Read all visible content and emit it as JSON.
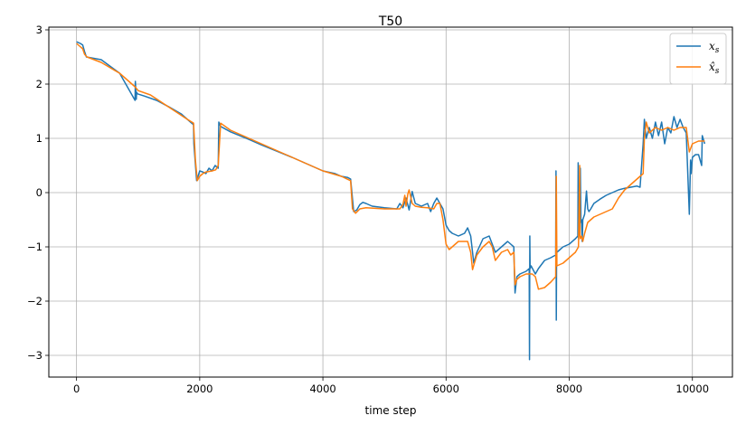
{
  "chart_data": {
    "type": "line",
    "title": "T50",
    "xlabel": "time step",
    "ylabel": "",
    "xlim": [
      -450,
      10650
    ],
    "ylim": [
      -3.4,
      3.05
    ],
    "xticks": [
      0,
      2000,
      4000,
      6000,
      8000,
      10000
    ],
    "xtick_labels": [
      "0",
      "2000",
      "4000",
      "6000",
      "8000",
      "10000"
    ],
    "yticks": [
      -3,
      -2,
      -1,
      0,
      1,
      2,
      3
    ],
    "ytick_labels": [
      "−3",
      "−2",
      "−1",
      "0",
      "1",
      "2",
      "3"
    ],
    "grid": true,
    "legend_position": "top-right",
    "series": [
      {
        "name": "x_s",
        "legend_main": "x",
        "legend_sub": "s",
        "color": "#1f77b4",
        "x": [
          0,
          60,
          100,
          130,
          160,
          400,
          700,
          950,
          955,
          970,
          975,
          990,
          1100,
          1300,
          1500,
          1700,
          1850,
          1900,
          1905,
          1950,
          2000,
          2050,
          2100,
          2150,
          2200,
          2250,
          2300,
          2310,
          2340,
          2500,
          2800,
          3000,
          3500,
          4000,
          4200,
          4300,
          4400,
          4450,
          4500,
          4550,
          4600,
          4650,
          4700,
          4800,
          5000,
          5200,
          5250,
          5300,
          5350,
          5400,
          5450,
          5500,
          5600,
          5700,
          5750,
          5800,
          5850,
          5900,
          5950,
          6000,
          6050,
          6100,
          6200,
          6300,
          6350,
          6400,
          6450,
          6500,
          6600,
          6700,
          6750,
          6800,
          6900,
          7000,
          7050,
          7100,
          7110,
          7120,
          7150,
          7200,
          7300,
          7350,
          7355,
          7360,
          7365,
          7380,
          7450,
          7500,
          7600,
          7700,
          7780,
          7785,
          7790,
          7795,
          7800,
          7850,
          7900,
          8000,
          8100,
          8140,
          8145,
          8150,
          8155,
          8160,
          8180,
          8190,
          8200,
          8210,
          8215,
          8220,
          8250,
          8280,
          8300,
          8320,
          8350,
          8400,
          8500,
          8600,
          8700,
          8800,
          8900,
          9000,
          9100,
          9150,
          9200,
          9220,
          9250,
          9300,
          9350,
          9400,
          9450,
          9500,
          9550,
          9600,
          9650,
          9700,
          9750,
          9800,
          9850,
          9900,
          9950,
          9970,
          9980,
          10000,
          10050,
          10100,
          10150,
          10160,
          10200
        ],
        "y": [
          2.78,
          2.75,
          2.72,
          2.6,
          2.5,
          2.45,
          2.2,
          1.7,
          2.05,
          1.72,
          1.85,
          1.82,
          1.78,
          1.7,
          1.58,
          1.45,
          1.3,
          1.25,
          0.9,
          0.22,
          0.4,
          0.38,
          0.35,
          0.45,
          0.4,
          0.5,
          0.45,
          1.3,
          1.22,
          1.12,
          0.98,
          0.88,
          0.65,
          0.4,
          0.35,
          0.3,
          0.28,
          0.25,
          -0.35,
          -0.32,
          -0.22,
          -0.18,
          -0.2,
          -0.25,
          -0.28,
          -0.3,
          -0.2,
          -0.28,
          -0.1,
          -0.32,
          0.02,
          -0.2,
          -0.25,
          -0.2,
          -0.35,
          -0.2,
          -0.1,
          -0.2,
          -0.3,
          -0.6,
          -0.7,
          -0.75,
          -0.8,
          -0.75,
          -0.65,
          -0.8,
          -1.3,
          -1.1,
          -0.85,
          -0.8,
          -0.95,
          -1.1,
          -1.0,
          -0.9,
          -0.95,
          -1.0,
          -1.5,
          -1.85,
          -1.55,
          -1.5,
          -1.45,
          -1.4,
          -3.08,
          -0.8,
          -1.4,
          -1.35,
          -1.5,
          -1.4,
          -1.25,
          -1.2,
          -1.15,
          0.4,
          -2.35,
          -1.1,
          -1.1,
          -1.05,
          -1.0,
          -0.95,
          -0.85,
          -0.8,
          0.55,
          -0.85,
          -0.7,
          -0.6,
          0.45,
          -0.55,
          -0.5,
          -0.9,
          -0.75,
          -0.5,
          -0.4,
          0.03,
          -0.3,
          -0.35,
          -0.3,
          -0.2,
          -0.12,
          -0.05,
          0.0,
          0.05,
          0.08,
          0.1,
          0.12,
          0.1,
          0.9,
          1.35,
          1.0,
          1.2,
          1.0,
          1.3,
          1.05,
          1.3,
          0.9,
          1.2,
          1.1,
          1.4,
          1.2,
          1.35,
          1.2,
          1.1,
          -0.4,
          0.6,
          0.35,
          0.65,
          0.7,
          0.7,
          0.5,
          1.05,
          0.9
        ]
      },
      {
        "name": "x̂_s",
        "legend_main": "x̂",
        "legend_sub": "s",
        "color": "#ff7f0e",
        "x": [
          0,
          50,
          100,
          130,
          170,
          400,
          700,
          950,
          1000,
          1200,
          1400,
          1600,
          1800,
          1900,
          1930,
          1960,
          2000,
          2050,
          2100,
          2200,
          2260,
          2300,
          2340,
          2500,
          2800,
          3000,
          3500,
          4000,
          4300,
          4450,
          4480,
          4530,
          4600,
          4700,
          5000,
          5250,
          5300,
          5330,
          5350,
          5380,
          5400,
          5420,
          5450,
          5500,
          5600,
          5700,
          5800,
          5850,
          5900,
          5950,
          6000,
          6050,
          6100,
          6200,
          6300,
          6350,
          6400,
          6430,
          6460,
          6500,
          6600,
          6700,
          6750,
          6800,
          6900,
          7000,
          7050,
          7100,
          7120,
          7150,
          7200,
          7300,
          7400,
          7450,
          7500,
          7600,
          7700,
          7780,
          7790,
          7800,
          7900,
          8000,
          8100,
          8150,
          8170,
          8175,
          8180,
          8200,
          8220,
          8250,
          8300,
          8400,
          8500,
          8600,
          8700,
          8800,
          8900,
          9000,
          9100,
          9200,
          9220,
          9250,
          9300,
          9400,
          9500,
          9600,
          9700,
          9800,
          9900,
          9950,
          10000,
          10100,
          10200
        ],
        "y": [
          2.75,
          2.7,
          2.65,
          2.55,
          2.5,
          2.4,
          2.2,
          1.95,
          1.88,
          1.8,
          1.65,
          1.5,
          1.35,
          1.28,
          0.6,
          0.22,
          0.3,
          0.35,
          0.38,
          0.4,
          0.42,
          0.5,
          1.28,
          1.15,
          1.0,
          0.9,
          0.65,
          0.4,
          0.3,
          0.22,
          -0.3,
          -0.38,
          -0.3,
          -0.28,
          -0.3,
          -0.3,
          -0.22,
          -0.05,
          -0.25,
          -0.02,
          0.05,
          -0.05,
          -0.2,
          -0.25,
          -0.27,
          -0.28,
          -0.3,
          -0.2,
          -0.2,
          -0.5,
          -0.95,
          -1.05,
          -1.0,
          -0.9,
          -0.9,
          -0.9,
          -1.1,
          -1.42,
          -1.3,
          -1.15,
          -1.0,
          -0.9,
          -1.0,
          -1.25,
          -1.1,
          -1.05,
          -1.15,
          -1.1,
          -1.7,
          -1.6,
          -1.55,
          -1.5,
          -1.5,
          -1.55,
          -1.78,
          -1.75,
          -1.65,
          -1.55,
          0.3,
          -1.35,
          -1.3,
          -1.2,
          -1.1,
          -1.0,
          0.5,
          -0.8,
          -0.85,
          -0.8,
          -0.9,
          -0.75,
          -0.55,
          -0.45,
          -0.4,
          -0.35,
          -0.3,
          -0.1,
          0.05,
          0.15,
          0.25,
          0.35,
          1.0,
          1.3,
          1.1,
          1.2,
          1.15,
          1.2,
          1.15,
          1.2,
          1.2,
          0.75,
          0.9,
          0.95,
          0.95
        ]
      }
    ]
  }
}
